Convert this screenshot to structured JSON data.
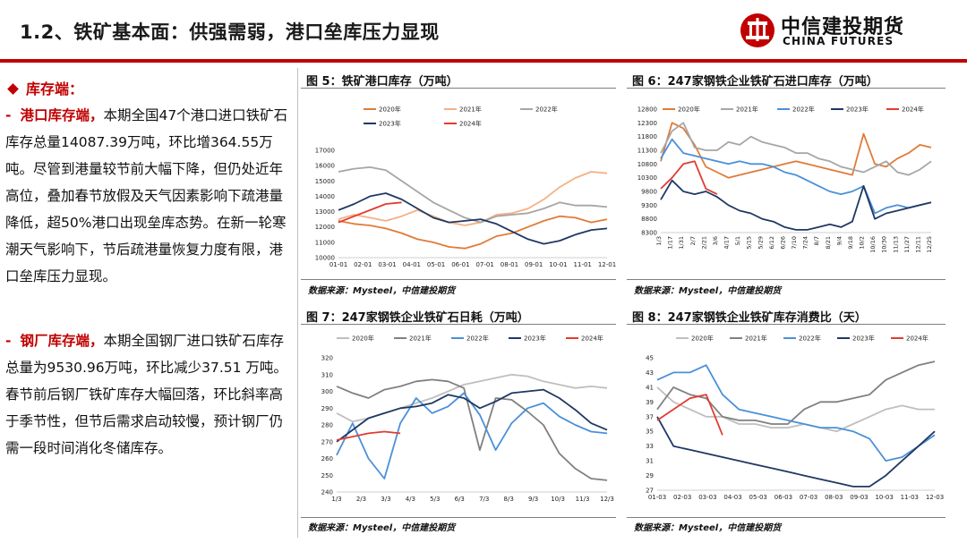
{
  "header": {
    "title": "1.2、铁矿基本面：供强需弱，港口垒库压力显现",
    "logo_cn": "中信建投期货",
    "logo_en": "CHINA FUTURES"
  },
  "left": {
    "section_title": "库存端：",
    "para1_dash": "-",
    "para1_highlight": "港口库存端，",
    "para1_text": "本期全国47个港口进口铁矿石库存总量14087.39万吨，环比增364.55万吨。尽管到港量较节前大幅下降，但仍处近年高位，叠加春节放假及天气因素影响下疏港量降低，超50%港口出现垒库态势。在新一轮寒潮天气影响下，节后疏港量恢复力度有限，港口垒库压力显现。",
    "para2_dash": "-",
    "para2_highlight": "钢厂库存端，",
    "para2_text": "本期全国钢厂进口铁矿石库存总量为9530.96万吨，环比减少37.51 万吨。春节前后钢厂铁矿库存大幅回落，环比斜率高于季节性，但节后需求启动较慢，预计钢厂仍需一段时间消化冬储库存。"
  },
  "charts": [
    {
      "title": "图 5：铁矿港口库存（万吨）",
      "source": "数据来源：Mysteel，中信建投期货",
      "legend": [
        "2020年",
        "2021年",
        "2022年",
        "2023年",
        "2024年"
      ],
      "y_ticks": [
        "17000",
        "16000",
        "15000",
        "14000",
        "13000",
        "12000",
        "11000",
        "10000"
      ],
      "x_ticks": [
        "01-01",
        "02-01",
        "03-01",
        "04-01",
        "05-01",
        "06-01",
        "07-01",
        "08-01",
        "09-01",
        "10-01",
        "11-01",
        "12-01"
      ]
    },
    {
      "title": "图 6：247家钢铁企业铁矿石进口库存（万吨）",
      "source": "数据来源：Mysteel，中信建投期货",
      "legend": [
        "2020年",
        "2021年",
        "2022年",
        "2023年",
        "2024年"
      ],
      "y_ticks": [
        "12800",
        "12300",
        "11800",
        "11300",
        "10800",
        "10300",
        "9800",
        "9300",
        "8800",
        "8300"
      ],
      "x_ticks": [
        "1/3",
        "1/17",
        "1/31",
        "2/7",
        "2/21",
        "3/6",
        "4/17",
        "5/1",
        "5/15",
        "5/29",
        "6/12",
        "6/26",
        "7/10",
        "7/24",
        "8/7",
        "8/21",
        "9/4",
        "9/18",
        "10/2",
        "10/16",
        "10/30",
        "11/13",
        "11/27",
        "12/11",
        "12/25"
      ]
    },
    {
      "title": "图 7：247家钢铁企业铁矿石日耗（万吨）",
      "source": "数据来源：Mysteel，中信建投期货",
      "legend": [
        "2020年",
        "2021年",
        "2022年",
        "2023年",
        "2024年"
      ],
      "y_ticks": [
        "320",
        "310",
        "300",
        "290",
        "280",
        "270",
        "260",
        "250",
        "240"
      ],
      "x_ticks": [
        "1/3",
        "2/3",
        "3/3",
        "4/3",
        "5/3",
        "6/3",
        "7/3",
        "8/3",
        "9/3",
        "10/3",
        "11/3",
        "12/3"
      ]
    },
    {
      "title": "图 8：247家钢铁企业铁矿库存消费比（天）",
      "source": "数据来源：Mysteel，中信建投期货",
      "legend": [
        "2020年",
        "2021年",
        "2022年",
        "2023年",
        "2024年"
      ],
      "y_ticks": [
        "45",
        "43",
        "41",
        "39",
        "37",
        "35",
        "33",
        "31",
        "29",
        "27"
      ],
      "x_ticks": [
        "01-03",
        "02-03",
        "03-03",
        "04-03",
        "05-03",
        "06-03",
        "07-03",
        "08-03",
        "09-03",
        "10-03",
        "11-03",
        "12-03"
      ]
    }
  ],
  "chart_data": [
    {
      "type": "line",
      "ylim": [
        10000,
        17000
      ],
      "colors": [
        "#e07b39",
        "#f4b183",
        "#a6a6a6",
        "#203864",
        "#e03c31"
      ],
      "series": [
        {
          "name": "2020年",
          "values": [
            12400,
            12200,
            12100,
            11900,
            11600,
            11200,
            11000,
            10700,
            10600,
            10900,
            11400,
            11600,
            12000,
            12400,
            12700,
            12600,
            12300,
            12500
          ]
        },
        {
          "name": "2021年",
          "values": [
            12500,
            12800,
            12600,
            12400,
            12700,
            13100,
            12700,
            12300,
            12100,
            12300,
            12800,
            12900,
            13200,
            13800,
            14600,
            15200,
            15600,
            15500
          ]
        },
        {
          "name": "2022年",
          "values": [
            15600,
            15800,
            15900,
            15700,
            15000,
            14300,
            13600,
            13100,
            12600,
            12300,
            12700,
            12800,
            12900,
            13200,
            13600,
            13400,
            13400,
            13300
          ]
        },
        {
          "name": "2023年",
          "values": [
            13100,
            13500,
            14000,
            14200,
            13800,
            13200,
            12600,
            12300,
            12400,
            12500,
            12200,
            11700,
            11200,
            10900,
            11100,
            11500,
            11800,
            11900
          ]
        },
        {
          "name": "2024年",
          "values": [
            12300,
            12700,
            13100,
            13500,
            13600
          ]
        }
      ]
    },
    {
      "type": "line",
      "ylim": [
        8300,
        12800
      ],
      "colors": [
        "#e07b39",
        "#a6a6a6",
        "#4a90d9",
        "#203864",
        "#e03c31"
      ],
      "series": [
        {
          "name": "2020年",
          "values": [
            10900,
            12300,
            12100,
            11500,
            10700,
            10500,
            10300,
            10400,
            10500,
            10600,
            10700,
            10800,
            10900,
            10800,
            10700,
            10600,
            10500,
            10400,
            11900,
            10800,
            10700,
            11000,
            11200,
            11500,
            11400
          ]
        },
        {
          "name": "2021年",
          "values": [
            11200,
            12000,
            12300,
            11400,
            11300,
            11300,
            11600,
            11500,
            11800,
            11600,
            11500,
            11400,
            11200,
            11200,
            11000,
            10900,
            10700,
            10600,
            10500,
            10700,
            10900,
            10500,
            10400,
            10600,
            10900
          ]
        },
        {
          "name": "2022年",
          "values": [
            11000,
            11700,
            11200,
            11100,
            11000,
            10900,
            10800,
            10900,
            10800,
            10800,
            10700,
            10500,
            10400,
            10200,
            10000,
            9800,
            9700,
            9800,
            10000,
            9000,
            9200,
            9300,
            9200,
            9300,
            9400
          ]
        },
        {
          "name": "2023年",
          "values": [
            9500,
            10200,
            9800,
            9700,
            9800,
            9600,
            9300,
            9100,
            9000,
            8800,
            8700,
            8500,
            8400,
            8400,
            8500,
            8600,
            8500,
            8700,
            10000,
            8800,
            9000,
            9100,
            9200,
            9300,
            9400
          ]
        },
        {
          "name": "2024年",
          "values": [
            9900,
            10300,
            10800,
            10900,
            9900,
            9700
          ]
        }
      ]
    },
    {
      "type": "line",
      "ylim": [
        240,
        320
      ],
      "colors": [
        "#bfbfbf",
        "#808080",
        "#4a90d9",
        "#203864",
        "#e03c31"
      ],
      "series": [
        {
          "name": "2020年",
          "values": [
            287,
            282,
            284,
            287,
            290,
            293,
            296,
            300,
            304,
            306,
            308,
            310,
            309,
            306,
            304,
            302,
            303,
            302
          ]
        },
        {
          "name": "2021年",
          "values": [
            303,
            299,
            296,
            301,
            303,
            306,
            307,
            306,
            302,
            265,
            296,
            295,
            288,
            280,
            263,
            254,
            248,
            247
          ]
        },
        {
          "name": "2022年",
          "values": [
            262,
            281,
            260,
            248,
            281,
            296,
            287,
            291,
            299,
            286,
            265,
            281,
            290,
            293,
            285,
            280,
            276,
            275
          ]
        },
        {
          "name": "2023年",
          "values": [
            270,
            277,
            284,
            287,
            290,
            291,
            293,
            298,
            296,
            290,
            294,
            299,
            300,
            301,
            296,
            289,
            281,
            277
          ]
        },
        {
          "name": "2024年",
          "values": [
            271,
            273,
            275,
            276,
            275
          ]
        }
      ]
    },
    {
      "type": "line",
      "ylim": [
        27,
        45
      ],
      "colors": [
        "#bfbfbf",
        "#808080",
        "#4a90d9",
        "#203864",
        "#e03c31"
      ],
      "series": [
        {
          "name": "2020年",
          "values": [
            41,
            39,
            38,
            37,
            37,
            36,
            36,
            35.5,
            35.5,
            36,
            35.5,
            35,
            36,
            37,
            38,
            38.5,
            38,
            38
          ]
        },
        {
          "name": "2021年",
          "values": [
            38,
            41,
            40,
            39.5,
            37,
            36.5,
            36.5,
            36,
            36,
            38,
            39,
            39,
            39.5,
            40,
            42,
            43,
            44,
            44.5
          ]
        },
        {
          "name": "2022年",
          "values": [
            42,
            43,
            43,
            44,
            40,
            38,
            37.5,
            37,
            36.5,
            36,
            35.5,
            35.5,
            35,
            34,
            31,
            31.5,
            33,
            34.5
          ]
        },
        {
          "name": "2023年",
          "values": [
            37,
            33,
            32.5,
            32,
            31.5,
            31,
            30.5,
            30,
            29.5,
            29,
            28.5,
            28,
            27.5,
            27.5,
            29,
            31,
            33,
            35
          ]
        },
        {
          "name": "2024年",
          "values": [
            36.5,
            38,
            39.5,
            40,
            34.5
          ]
        }
      ]
    }
  ]
}
